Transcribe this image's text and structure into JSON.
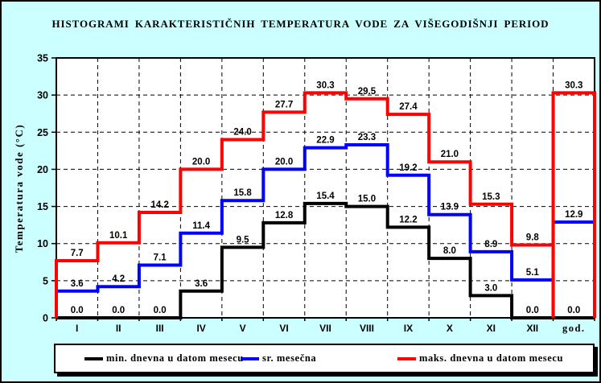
{
  "figure": {
    "background_color": "#CCFFFF",
    "plot_background_color": "#FFFFFF"
  },
  "chart_data": {
    "type": "line",
    "subtype": "step-histogram",
    "title": "HISTOGRAMI KARAKTERISTIČNIH TEMPERATURA VODE ZA VIŠEGODIŠNJI PERIOD",
    "xlabel": "",
    "ylabel": "Temperatura vode (°C)",
    "categories": [
      "I",
      "II",
      "III",
      "IV",
      "V",
      "VI",
      "VII",
      "VIII",
      "IX",
      "X",
      "XI",
      "XII",
      "god."
    ],
    "ylim": [
      0,
      35
    ],
    "yticks": [
      0,
      5,
      10,
      15,
      20,
      25,
      30,
      35
    ],
    "grid": "dashed horizontal and vertical",
    "legend_position": "bottom",
    "series": [
      {
        "name": "min. dnevna u datom mesecu",
        "color": "#000000",
        "values": [
          0.0,
          0.0,
          0.0,
          3.6,
          9.5,
          12.8,
          15.4,
          15.0,
          12.2,
          8.0,
          3.0,
          0.0,
          0.0
        ]
      },
      {
        "name": "sr. mesečna",
        "color": "#0000FF",
        "values": [
          3.6,
          4.2,
          7.1,
          11.4,
          15.8,
          20.0,
          22.9,
          23.3,
          19.2,
          13.9,
          8.9,
          5.1,
          12.9
        ]
      },
      {
        "name": "maks. dnevna u datom mesecu",
        "color": "#FF0000",
        "values": [
          7.7,
          10.1,
          14.2,
          20.0,
          24.0,
          27.7,
          30.3,
          29.5,
          27.4,
          21.0,
          15.3,
          9.8,
          30.3
        ]
      }
    ]
  }
}
